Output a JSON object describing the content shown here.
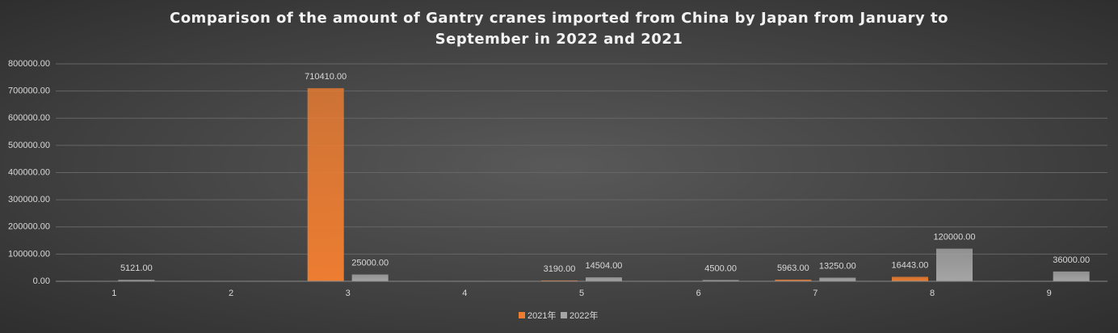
{
  "chart_data": {
    "type": "bar",
    "title": "Comparison of the amount of Gantry cranes imported from China by Japan from January to September in 2022 and 2021",
    "categories": [
      "1",
      "2",
      "3",
      "4",
      "5",
      "6",
      "7",
      "8",
      "9"
    ],
    "series": [
      {
        "name": "2021年",
        "color": "#ed7d31",
        "values": [
          null,
          null,
          710410,
          null,
          3190,
          null,
          5963,
          16443,
          null
        ],
        "value_labels": [
          null,
          null,
          "710410.00",
          null,
          "3190.00",
          null,
          "5963.00",
          "16443.00",
          null
        ]
      },
      {
        "name": "2022年",
        "color": "#a5a5a5",
        "values": [
          5121,
          null,
          25000,
          null,
          14504,
          4500,
          13250,
          120000,
          36000
        ],
        "value_labels": [
          "5121.00",
          null,
          "25000.00",
          null,
          "14504.00",
          "4500.00",
          "13250.00",
          "120000.00",
          "36000.00"
        ]
      }
    ],
    "ylim": [
      0,
      800000
    ],
    "yticks": [
      {
        "value": 0,
        "label": "0.00"
      },
      {
        "value": 100000,
        "label": "100000.00"
      },
      {
        "value": 200000,
        "label": "200000.00"
      },
      {
        "value": 300000,
        "label": "300000.00"
      },
      {
        "value": 400000,
        "label": "400000.00"
      },
      {
        "value": 500000,
        "label": "500000.00"
      },
      {
        "value": 600000,
        "label": "600000.00"
      },
      {
        "value": 700000,
        "label": "700000.00"
      },
      {
        "value": 800000,
        "label": "800000.00"
      }
    ],
    "grid": true,
    "legend": "bottom"
  }
}
